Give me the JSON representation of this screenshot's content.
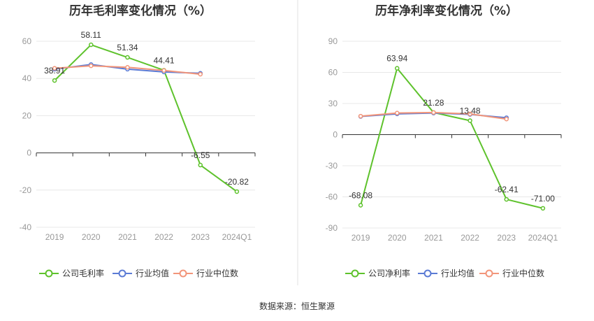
{
  "colors": {
    "company": "#5ec22c",
    "industry_avg": "#5b7bd5",
    "industry_median": "#f2957a",
    "grid": "#e8e8e8",
    "axis": "#333333",
    "divider": "#e0e0e0"
  },
  "source_text": "数据来源：恒生聚源",
  "chart_data": [
    {
      "type": "line",
      "title": "历年毛利率变化情况（%）",
      "categories": [
        "2019",
        "2020",
        "2021",
        "2022",
        "2023",
        "2024Q1"
      ],
      "ylim": [
        -40,
        60
      ],
      "yticks": [
        60,
        40,
        20,
        0,
        -20,
        -40
      ],
      "grid": true,
      "legend_position": "bottom",
      "series": [
        {
          "name": "公司毛利率",
          "key": "company",
          "values": [
            38.91,
            58.11,
            51.34,
            44.41,
            -6.55,
            -20.82
          ],
          "labels": [
            "38.91",
            "58.11",
            "51.34",
            "44.41",
            "-6.55",
            "-20.82"
          ]
        },
        {
          "name": "行业均值",
          "key": "industry_avg",
          "values": [
            45.0,
            47.5,
            45.0,
            43.5,
            42.8,
            null
          ]
        },
        {
          "name": "行业中位数",
          "key": "industry_median",
          "values": [
            45.5,
            46.8,
            46.0,
            44.3,
            42.3,
            null
          ]
        }
      ]
    },
    {
      "type": "line",
      "title": "历年净利率变化情况（%）",
      "categories": [
        "2019",
        "2020",
        "2021",
        "2022",
        "2023",
        "2024Q1"
      ],
      "ylim": [
        -90,
        90
      ],
      "yticks": [
        90,
        60,
        30,
        0,
        -30,
        -60,
        -90
      ],
      "grid": true,
      "legend_position": "bottom",
      "series": [
        {
          "name": "公司净利率",
          "key": "company",
          "values": [
            -68.08,
            63.94,
            21.28,
            13.48,
            -62.41,
            -71.0
          ],
          "labels": [
            "-68.08",
            "63.94",
            "21.28",
            "13.48",
            "-62.41",
            "-71.00"
          ]
        },
        {
          "name": "行业均值",
          "key": "industry_avg",
          "values": [
            17.5,
            20.0,
            20.8,
            19.5,
            16.3,
            null
          ]
        },
        {
          "name": "行业中位数",
          "key": "industry_median",
          "values": [
            17.8,
            20.8,
            21.3,
            20.0,
            15.0,
            null
          ]
        }
      ]
    }
  ]
}
